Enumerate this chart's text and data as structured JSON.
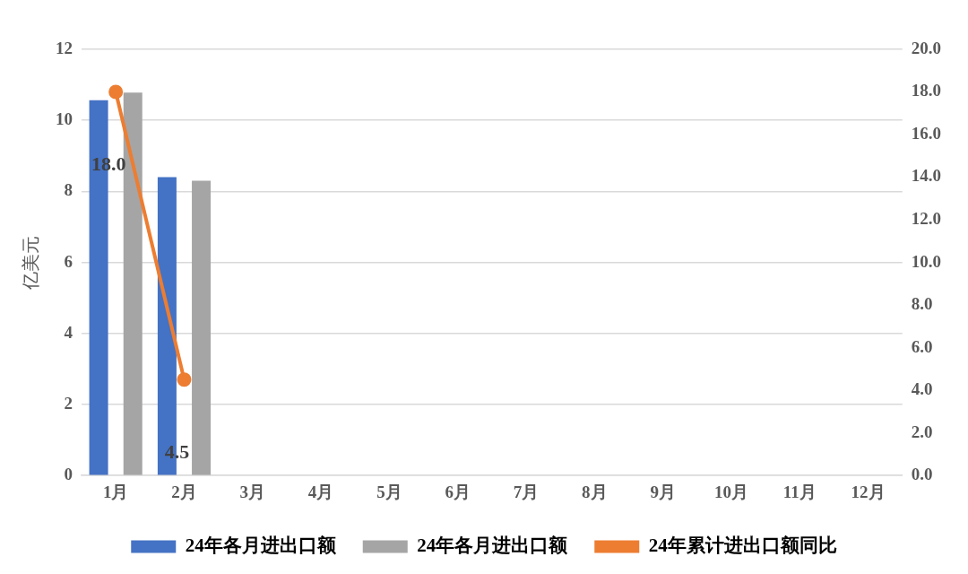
{
  "chart_data": {
    "type": "bar",
    "ylabel": "亿美元",
    "categories": [
      "1月",
      "2月",
      "3月",
      "4月",
      "5月",
      "6月",
      "7月",
      "8月",
      "9月",
      "10月",
      "11月",
      "12月"
    ],
    "series": [
      {
        "name": "24年各月进出口额",
        "color": "#4472c4",
        "values": [
          10.57,
          8.4,
          null,
          null,
          null,
          null,
          null,
          null,
          null,
          null,
          null,
          null
        ]
      },
      {
        "name": "24年各月进出口额",
        "color": "#a5a5a5",
        "values": [
          10.78,
          8.3,
          null,
          null,
          null,
          null,
          null,
          null,
          null,
          null,
          null,
          null
        ]
      },
      {
        "name": "24年累计进出口额同比",
        "type": "line",
        "axis": "y2",
        "color": "#ed7d31",
        "marker": "circle",
        "values": [
          18.0,
          4.5,
          null,
          null,
          null,
          null,
          null,
          null,
          null,
          null,
          null,
          null
        ],
        "value_labels": [
          "18.0",
          "4.5",
          null,
          null,
          null,
          null,
          null,
          null,
          null,
          null,
          null,
          null
        ]
      }
    ],
    "ylim": [
      0,
      12
    ],
    "yticks": [
      0,
      2,
      4,
      6,
      8,
      10,
      12
    ],
    "y2lim": [
      0,
      20
    ],
    "y2ticks": [
      {
        "value": 0,
        "label": "0.0"
      },
      {
        "value": 2,
        "label": "2.0"
      },
      {
        "value": 4,
        "label": "4.0"
      },
      {
        "value": 6,
        "label": "6.0"
      },
      {
        "value": 8,
        "label": "8.0"
      },
      {
        "value": 10,
        "label": "10.0"
      },
      {
        "value": 12,
        "label": "12.0"
      },
      {
        "value": 14,
        "label": "14.0"
      },
      {
        "value": 16,
        "label": "16.0"
      },
      {
        "value": 18,
        "label": "18.0"
      },
      {
        "value": 20,
        "label": "20.0"
      }
    ],
    "grid": "y",
    "legend": "bottom"
  }
}
